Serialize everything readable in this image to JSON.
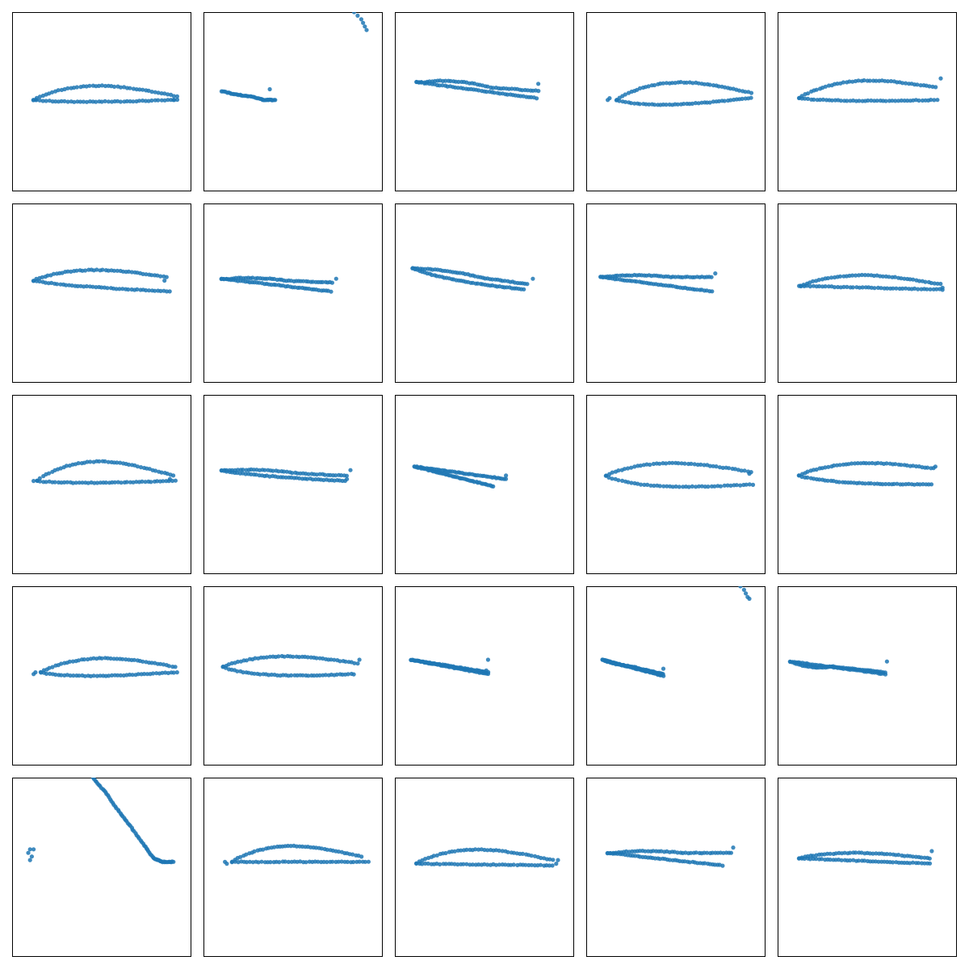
{
  "figure": {
    "rows": 5,
    "cols": 5,
    "marker_color": "#1f77b4",
    "frame_color": "#000000",
    "background": "#ffffff"
  },
  "chart_data": [
    {
      "type": "scatter",
      "xlim": [
        0,
        1
      ],
      "ylim": [
        0,
        1
      ],
      "grid": false,
      "shape": "cambered_airfoil",
      "lead": [
        0.12,
        0.51
      ],
      "trail": [
        0.92,
        0.53
      ],
      "trail_low": [
        0.92,
        0.51
      ],
      "upper_peak": 0.59,
      "lower_dip": 0.5,
      "extra": [
        [
          0.13,
          0.51
        ],
        [
          0.9,
          0.51
        ]
      ]
    },
    {
      "type": "scatter",
      "xlim": [
        0,
        1
      ],
      "ylim": [
        0,
        1
      ],
      "grid": false,
      "shape": "stroke",
      "path": [
        [
          0.1,
          0.56
        ],
        [
          0.18,
          0.54
        ],
        [
          0.26,
          0.53
        ],
        [
          0.34,
          0.51
        ],
        [
          0.4,
          0.51
        ]
      ],
      "extra": [
        [
          0.37,
          0.57
        ],
        [
          0.33,
          0.51
        ],
        [
          0.84,
          1.0
        ],
        [
          0.86,
          0.98
        ],
        [
          0.88,
          0.96
        ],
        [
          0.89,
          0.94
        ],
        [
          0.9,
          0.92
        ],
        [
          0.91,
          0.9
        ]
      ]
    },
    {
      "type": "scatter",
      "xlim": [
        0,
        1
      ],
      "ylim": [
        0,
        1
      ],
      "grid": false,
      "shape": "airfoil",
      "lead": [
        0.12,
        0.61
      ],
      "trail": [
        0.8,
        0.56
      ],
      "trail_low": [
        0.79,
        0.52
      ],
      "upper_peak": 0.63,
      "lower_dip": 0.52,
      "extra": [
        [
          0.8,
          0.6
        ]
      ]
    },
    {
      "type": "scatter",
      "xlim": [
        0,
        1
      ],
      "ylim": [
        0,
        1
      ],
      "grid": false,
      "shape": "cambered_airfoil",
      "lead": [
        0.17,
        0.51
      ],
      "trail": [
        0.92,
        0.55
      ],
      "trail_low": [
        0.92,
        0.52
      ],
      "upper_peak": 0.61,
      "lower_dip": 0.48,
      "extra": [
        [
          0.12,
          0.51
        ],
        [
          0.13,
          0.52
        ]
      ]
    },
    {
      "type": "scatter",
      "xlim": [
        0,
        1
      ],
      "ylim": [
        0,
        1
      ],
      "grid": false,
      "shape": "cambered_airfoil",
      "lead": [
        0.12,
        0.52
      ],
      "trail": [
        0.88,
        0.58
      ],
      "trail_low": [
        0.89,
        0.51
      ],
      "upper_peak": 0.62,
      "lower_dip": 0.5,
      "extra": [
        [
          0.91,
          0.63
        ]
      ]
    },
    {
      "type": "scatter",
      "xlim": [
        0,
        1
      ],
      "ylim": [
        0,
        1
      ],
      "grid": false,
      "shape": "thick_airfoil",
      "lead": [
        0.12,
        0.57
      ],
      "trail": [
        0.86,
        0.59
      ],
      "trail_low": [
        0.88,
        0.51
      ],
      "upper_peak": 0.63,
      "lower_dip": 0.5,
      "extra": [
        [
          0.85,
          0.57
        ]
      ]
    },
    {
      "type": "scatter",
      "xlim": [
        0,
        1
      ],
      "ylim": [
        0,
        1
      ],
      "grid": false,
      "shape": "airfoil",
      "lead": [
        0.1,
        0.58
      ],
      "trail": [
        0.72,
        0.56
      ],
      "trail_low": [
        0.71,
        0.51
      ],
      "upper_peak": 0.59,
      "lower_dip": 0.52,
      "extra": [
        [
          0.74,
          0.58
        ]
      ]
    },
    {
      "type": "scatter",
      "xlim": [
        0,
        1
      ],
      "ylim": [
        0,
        1
      ],
      "grid": false,
      "shape": "airfoil",
      "lead": [
        0.1,
        0.64
      ],
      "trail": [
        0.74,
        0.55
      ],
      "trail_low": [
        0.72,
        0.52
      ],
      "upper_peak": 0.65,
      "lower_dip": 0.5,
      "extra": [
        [
          0.77,
          0.58
        ]
      ]
    },
    {
      "type": "scatter",
      "xlim": [
        0,
        1
      ],
      "ylim": [
        0,
        1
      ],
      "grid": false,
      "shape": "airfoil",
      "lead": [
        0.08,
        0.59
      ],
      "trail": [
        0.7,
        0.59
      ],
      "trail_low": [
        0.7,
        0.51
      ],
      "upper_peak": 0.6,
      "lower_dip": 0.51,
      "extra": [
        [
          0.72,
          0.61
        ]
      ]
    },
    {
      "type": "scatter",
      "xlim": [
        0,
        1
      ],
      "ylim": [
        0,
        1
      ],
      "grid": false,
      "shape": "flat_airfoil",
      "lead": [
        0.13,
        0.54
      ],
      "trail": [
        0.91,
        0.55
      ],
      "trail_low": [
        0.92,
        0.52
      ],
      "upper_peak": 0.6,
      "lower_dip": 0.54,
      "extra": [
        [
          0.12,
          0.54
        ],
        [
          0.92,
          0.53
        ]
      ]
    },
    {
      "type": "scatter",
      "xlim": [
        0,
        1
      ],
      "ylim": [
        0,
        1
      ],
      "grid": false,
      "shape": "cambered_airfoil",
      "lead": [
        0.14,
        0.52
      ],
      "trail": [
        0.9,
        0.55
      ],
      "trail_low": [
        0.91,
        0.52
      ],
      "upper_peak": 0.63,
      "lower_dip": 0.51,
      "extra": [
        [
          0.12,
          0.52
        ],
        [
          0.88,
          0.53
        ]
      ]
    },
    {
      "type": "scatter",
      "xlim": [
        0,
        1
      ],
      "ylim": [
        0,
        1
      ],
      "grid": false,
      "shape": "airfoil",
      "lead": [
        0.1,
        0.58
      ],
      "trail": [
        0.8,
        0.55
      ],
      "trail_low": [
        0.79,
        0.52
      ],
      "upper_peak": 0.59,
      "lower_dip": 0.51,
      "extra": [
        [
          0.82,
          0.58
        ],
        [
          0.8,
          0.53
        ]
      ]
    },
    {
      "type": "scatter",
      "xlim": [
        0,
        1
      ],
      "ylim": [
        0,
        1
      ],
      "grid": false,
      "shape": "airfoil",
      "lead": [
        0.11,
        0.6
      ],
      "trail": [
        0.62,
        0.53
      ],
      "trail_low": [
        0.55,
        0.49
      ],
      "upper_peak": 0.6,
      "lower_dip": 0.54,
      "extra": [
        [
          0.62,
          0.55
        ]
      ]
    },
    {
      "type": "scatter",
      "xlim": [
        0,
        1
      ],
      "ylim": [
        0,
        1
      ],
      "grid": false,
      "shape": "thick_airfoil",
      "lead": [
        0.11,
        0.55
      ],
      "trail": [
        0.92,
        0.57
      ],
      "trail_low": [
        0.93,
        0.5
      ],
      "upper_peak": 0.62,
      "lower_dip": 0.46,
      "extra": [
        [
          0.91,
          0.56
        ]
      ]
    },
    {
      "type": "scatter",
      "xlim": [
        0,
        1
      ],
      "ylim": [
        0,
        1
      ],
      "grid": false,
      "shape": "thick_airfoil",
      "lead": [
        0.12,
        0.55
      ],
      "trail": [
        0.87,
        0.59
      ],
      "trail_low": [
        0.86,
        0.5
      ],
      "upper_peak": 0.62,
      "lower_dip": 0.48,
      "extra": [
        [
          0.88,
          0.6
        ]
      ]
    },
    {
      "type": "scatter",
      "xlim": [
        0,
        1
      ],
      "ylim": [
        0,
        1
      ],
      "grid": false,
      "shape": "cambered_airfoil",
      "lead": [
        0.16,
        0.52
      ],
      "trail": [
        0.91,
        0.55
      ],
      "trail_low": [
        0.92,
        0.52
      ],
      "upper_peak": 0.6,
      "lower_dip": 0.5,
      "extra": [
        [
          0.12,
          0.51
        ],
        [
          0.13,
          0.52
        ]
      ]
    },
    {
      "type": "scatter",
      "xlim": [
        0,
        1
      ],
      "ylim": [
        0,
        1
      ],
      "grid": false,
      "shape": "thick_airfoil",
      "lead": [
        0.11,
        0.55
      ],
      "trail": [
        0.86,
        0.57
      ],
      "trail_low": [
        0.84,
        0.51
      ],
      "upper_peak": 0.61,
      "lower_dip": 0.48,
      "extra": [
        [
          0.87,
          0.59
        ]
      ]
    },
    {
      "type": "scatter",
      "xlim": [
        0,
        1
      ],
      "ylim": [
        0,
        1
      ],
      "grid": false,
      "shape": "wedge",
      "lead": [
        0.09,
        0.59
      ],
      "trail": [
        0.52,
        0.52
      ],
      "trail_low": [
        0.52,
        0.51
      ],
      "upper_peak": 0.59,
      "lower_dip": 0.51,
      "extra": [
        [
          0.52,
          0.59
        ],
        [
          0.51,
          0.53
        ]
      ]
    },
    {
      "type": "scatter",
      "xlim": [
        0,
        1
      ],
      "ylim": [
        0,
        1
      ],
      "grid": false,
      "shape": "wedge",
      "lead": [
        0.09,
        0.59
      ],
      "trail": [
        0.43,
        0.5
      ],
      "trail_low": [
        0.43,
        0.51
      ],
      "upper_peak": 0.59,
      "lower_dip": 0.5,
      "extra": [
        [
          0.43,
          0.54
        ],
        [
          0.86,
          1.0
        ],
        [
          0.88,
          0.98
        ],
        [
          0.89,
          0.96
        ],
        [
          0.9,
          0.94
        ],
        [
          0.91,
          0.93
        ]
      ]
    },
    {
      "type": "scatter",
      "xlim": [
        0,
        1
      ],
      "ylim": [
        0,
        1
      ],
      "grid": false,
      "shape": "wedge",
      "lead": [
        0.07,
        0.58
      ],
      "trail": [
        0.6,
        0.51
      ],
      "trail_low": [
        0.6,
        0.52
      ],
      "upper_peak": 0.58,
      "lower_dip": 0.49,
      "extra": [
        [
          0.61,
          0.58
        ]
      ]
    },
    {
      "type": "scatter",
      "xlim": [
        0,
        1
      ],
      "ylim": [
        0,
        1
      ],
      "grid": false,
      "shape": "stroke",
      "path": [
        [
          0.45,
          1.0
        ],
        [
          0.52,
          0.92
        ],
        [
          0.59,
          0.82
        ],
        [
          0.66,
          0.73
        ],
        [
          0.73,
          0.63
        ],
        [
          0.79,
          0.55
        ],
        [
          0.84,
          0.53
        ],
        [
          0.9,
          0.53
        ]
      ],
      "extra": [
        [
          0.09,
          0.58
        ],
        [
          0.1,
          0.6
        ],
        [
          0.12,
          0.6
        ],
        [
          0.11,
          0.56
        ],
        [
          0.1,
          0.54
        ]
      ]
    },
    {
      "type": "scatter",
      "xlim": [
        0,
        1
      ],
      "ylim": [
        0,
        1
      ],
      "grid": false,
      "shape": "cambered_airfoil",
      "lead": [
        0.16,
        0.53
      ],
      "trail": [
        0.88,
        0.56
      ],
      "trail_low": [
        0.92,
        0.53
      ],
      "upper_peak": 0.62,
      "lower_dip": 0.53,
      "extra": [
        [
          0.12,
          0.53
        ],
        [
          0.13,
          0.52
        ]
      ]
    },
    {
      "type": "scatter",
      "xlim": [
        0,
        1
      ],
      "ylim": [
        0,
        1
      ],
      "grid": false,
      "shape": "flat_airfoil",
      "lead": [
        0.12,
        0.52
      ],
      "trail": [
        0.88,
        0.54
      ],
      "trail_low": [
        0.88,
        0.51
      ],
      "upper_peak": 0.6,
      "lower_dip": 0.51,
      "extra": [
        [
          0.9,
          0.52
        ],
        [
          0.91,
          0.54
        ]
      ]
    },
    {
      "type": "scatter",
      "xlim": [
        0,
        1
      ],
      "ylim": [
        0,
        1
      ],
      "grid": false,
      "shape": "airfoil",
      "lead": [
        0.12,
        0.58
      ],
      "trail": [
        0.81,
        0.58
      ],
      "trail_low": [
        0.76,
        0.51
      ],
      "upper_peak": 0.59,
      "lower_dip": 0.52,
      "extra": [
        [
          0.82,
          0.61
        ]
      ]
    },
    {
      "type": "scatter",
      "xlim": [
        0,
        1
      ],
      "ylim": [
        0,
        1
      ],
      "grid": false,
      "shape": "flat_airfoil",
      "lead": [
        0.12,
        0.55
      ],
      "trail": [
        0.85,
        0.55
      ],
      "trail_low": [
        0.85,
        0.52
      ],
      "upper_peak": 0.58,
      "lower_dip": 0.52,
      "extra": [
        [
          0.86,
          0.59
        ]
      ]
    }
  ]
}
